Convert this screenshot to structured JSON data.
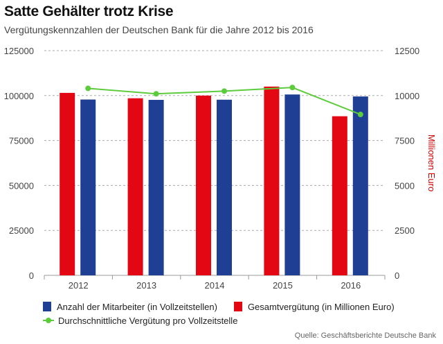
{
  "header": {
    "title": "Satte Gehälter trotz Krise",
    "subtitle": "Vergütungskennzahlen der Deutschen Bank für die Jahre 2012 bis 2016"
  },
  "source": "Quelle: Geschäftsberichte Deutsche Bank",
  "colors": {
    "employees": "#1f3f94",
    "total_comp": "#e30613",
    "avg_comp": "#5ccc3c",
    "right_axis_label": "#cc0000"
  },
  "chart_data": {
    "type": "bar",
    "title": "Satte Gehälter trotz Krise",
    "subtitle": "Vergütungskennzahlen der Deutschen Bank für die Jahre 2012 bis 2016",
    "categories": [
      "2012",
      "2013",
      "2014",
      "2015",
      "2016"
    ],
    "xlabel": "",
    "ylabel_left": "",
    "ylabel_right": "Millionen Euro",
    "ylim_left": [
      0,
      125000
    ],
    "yticks_left": [
      "0",
      "25000",
      "50000",
      "75000",
      "100000",
      "125000"
    ],
    "ylim_right": [
      0,
      12500
    ],
    "yticks_right": [
      "0",
      "2500",
      "5000",
      "7500",
      "10000",
      "12500"
    ],
    "grid": "horizontal dashed",
    "legend_position": "bottom",
    "series": [
      {
        "name": "Gesamtvergütung (in Millionen Euro)",
        "type": "bar",
        "axis": "right",
        "values": [
          10150,
          9850,
          10000,
          10500,
          8850
        ]
      },
      {
        "name": "Anzahl der Mitarbeiter (in Vollzeitstellen)",
        "type": "bar",
        "axis": "left",
        "values": [
          97800,
          97600,
          97700,
          100600,
          99500
        ]
      },
      {
        "name": "Durchschnittliche Vergütung pro Vollzeitstelle",
        "type": "line",
        "axis": "left",
        "values": [
          104000,
          101000,
          102500,
          104500,
          89500
        ]
      }
    ]
  },
  "legend": {
    "employees": "Anzahl der Mitarbeiter (in Vollzeitstellen)",
    "total_comp": "Gesamtvergütung (in Millionen Euro)",
    "avg_comp": "Durchschnittliche Vergütung pro Vollzeitstelle"
  }
}
